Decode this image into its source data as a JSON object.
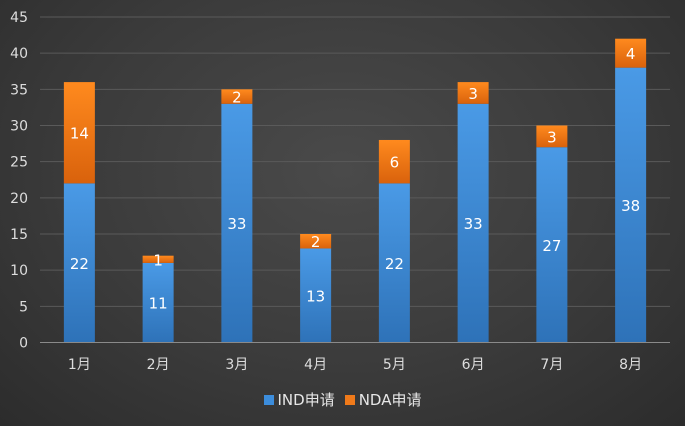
{
  "chart_data": {
    "type": "bar",
    "stacked": true,
    "categories": [
      "1月",
      "2月",
      "3月",
      "4月",
      "5月",
      "6月",
      "7月",
      "8月"
    ],
    "series": [
      {
        "name": "IND申请",
        "values": [
          22,
          11,
          33,
          13,
          22,
          33,
          27,
          38
        ],
        "color": "#3c8ddc"
      },
      {
        "name": "NDA申请",
        "values": [
          14,
          1,
          2,
          2,
          6,
          3,
          3,
          4
        ],
        "color": "#f07a1a"
      }
    ],
    "yticks": [
      "0",
      "5",
      "10",
      "15",
      "20",
      "25",
      "30",
      "35",
      "40",
      "45"
    ],
    "ylim": [
      0,
      45
    ],
    "grid": true,
    "legend_position": "bottom"
  }
}
